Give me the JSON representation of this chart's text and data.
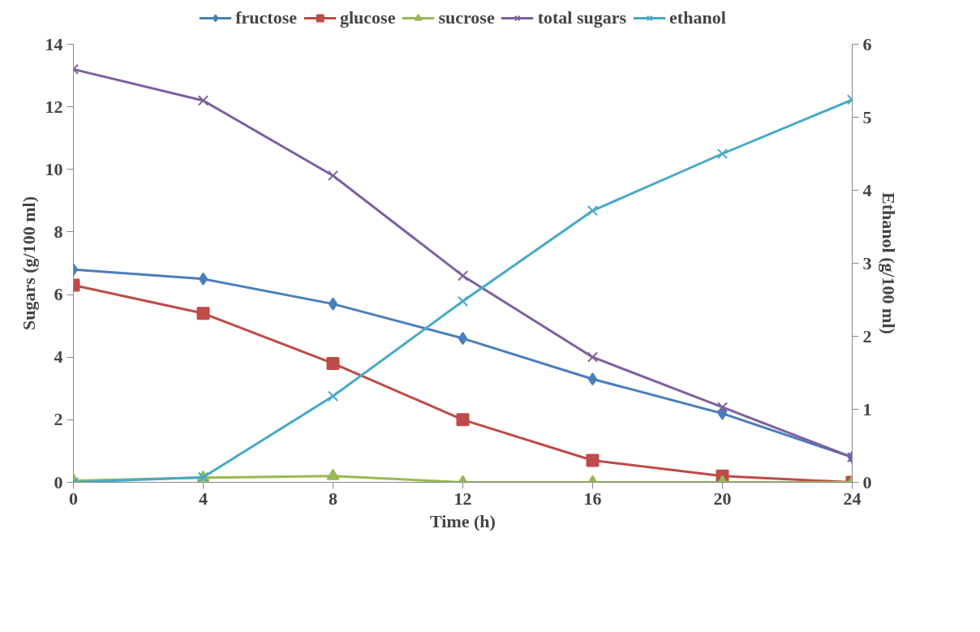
{
  "chart_data": {
    "type": "line",
    "xlabel": "Time (h)",
    "ylabel": "Sugars (g/100 ml)",
    "y2label": "Ethanol (g/100 ml)",
    "x": [
      0,
      4,
      8,
      12,
      16,
      20,
      24
    ],
    "xlim": [
      0,
      24
    ],
    "xticks": [
      0,
      4,
      8,
      12,
      16,
      20,
      24
    ],
    "ylim": [
      0,
      14
    ],
    "yticks": [
      0,
      2,
      4,
      6,
      8,
      10,
      12,
      14
    ],
    "y2lim": [
      0,
      6
    ],
    "y2ticks": [
      0,
      1,
      2,
      3,
      4,
      5,
      6
    ],
    "grid": false,
    "legend": "top",
    "line_style": "solid",
    "series": [
      {
        "name": "fructose",
        "color": "#4a7ebb",
        "marker": "diamond",
        "values": [
          6.8,
          6.5,
          5.7,
          4.6,
          3.3,
          2.2,
          0.8
        ]
      },
      {
        "name": "glucose",
        "color": "#be4b48",
        "marker": "square",
        "values": [
          6.3,
          5.4,
          3.8,
          2.0,
          0.7,
          0.2,
          0
        ]
      },
      {
        "name": "sucrose",
        "color": "#98b954",
        "marker": "triangle",
        "values": [
          0.05,
          0.15,
          0.2,
          0,
          0,
          0,
          0
        ]
      },
      {
        "name": "total sugars",
        "color": "#7d60a0",
        "marker": "cross",
        "values": [
          13.2,
          12.2,
          9.8,
          6.6,
          4.0,
          2.4,
          0.8
        ]
      },
      {
        "name": "ethanol",
        "color": "#46aac5",
        "marker": "cross",
        "axis": "y2",
        "values": [
          0,
          0.07,
          1.18,
          2.48,
          3.72,
          4.5,
          5.24
        ]
      }
    ]
  }
}
